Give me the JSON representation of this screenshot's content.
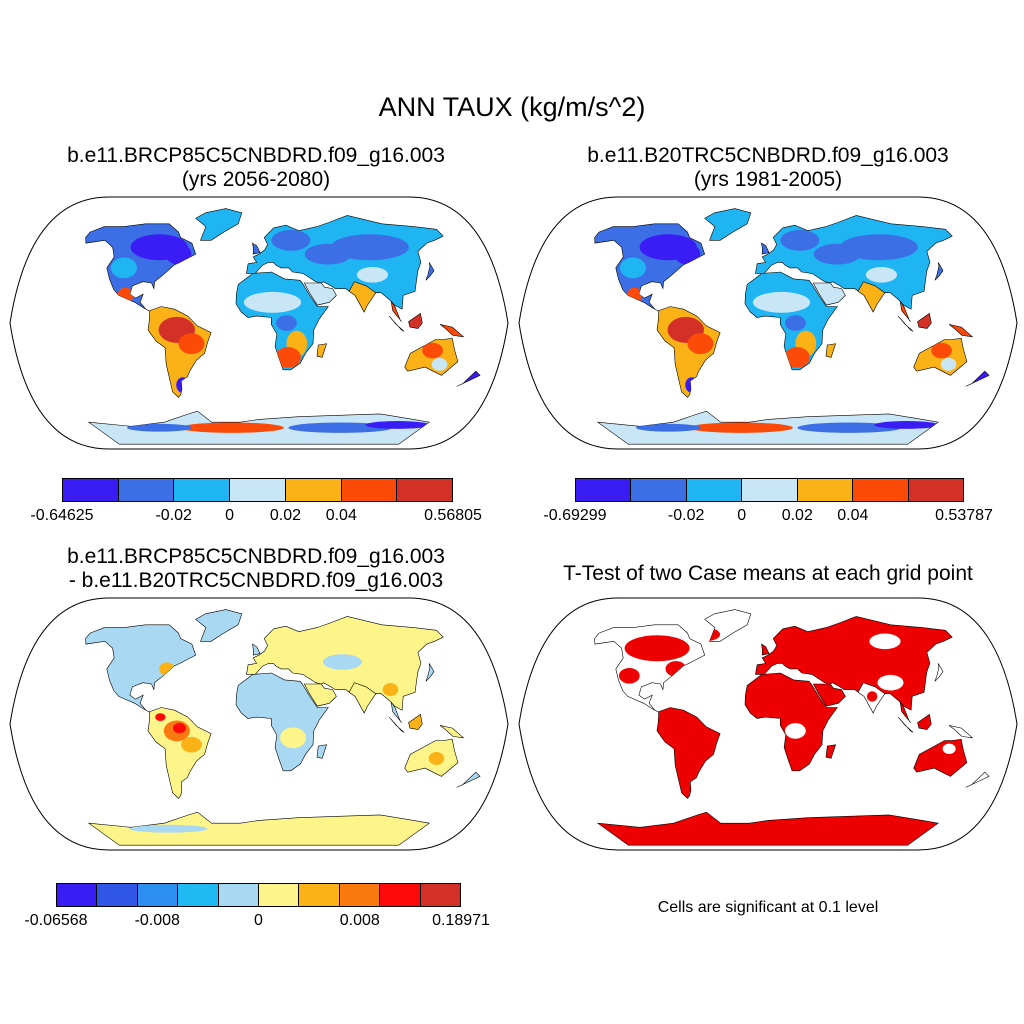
{
  "title": "ANN TAUX (kg/m/s^2)",
  "panels": [
    {
      "title_line1": "b.e11.BRCP85C5CNBDRD.f09_g16.003",
      "title_line2": "(yrs 2056-2080)",
      "colorbar": {
        "colors": [
          "#3a1cf4",
          "#3c6fe6",
          "#1fb4f2",
          "#c9e6f7",
          "#fbb217",
          "#fc4a08",
          "#d33028"
        ],
        "labels": [
          "-0.64625",
          "-0.02",
          "0",
          "0.02",
          "0.04",
          "0.56805"
        ]
      }
    },
    {
      "title_line1": "b.e11.B20TRC5CNBDRD.f09_g16.003",
      "title_line2": "(yrs 1981-2005)",
      "colorbar": {
        "colors": [
          "#3a1cf4",
          "#3c6fe6",
          "#1fb4f2",
          "#c9e6f7",
          "#fbb217",
          "#fc4a08",
          "#d33028"
        ],
        "labels": [
          "-0.69299",
          "-0.02",
          "0",
          "0.02",
          "0.04",
          "0.53787"
        ]
      }
    },
    {
      "title_line1": "b.e11.BRCP85C5CNBDRD.f09_g16.003",
      "title_line2": "- b.e11.B20TRC5CNBDRD.f09_g16.003",
      "colorbar": {
        "colors": [
          "#3a1cf4",
          "#3056e8",
          "#2b8ef0",
          "#1fb9f4",
          "#a9d8f2",
          "#fdf58a",
          "#fbb217",
          "#fb7a10",
          "#fc0a0a",
          "#d33028"
        ],
        "labels": [
          "-0.06568",
          "-0.008",
          "0",
          "0.008",
          "0.18971"
        ]
      }
    },
    {
      "title_line1": "T-Test of two Case means at each grid point",
      "note": "Cells are significant at 0.1 level"
    }
  ]
}
